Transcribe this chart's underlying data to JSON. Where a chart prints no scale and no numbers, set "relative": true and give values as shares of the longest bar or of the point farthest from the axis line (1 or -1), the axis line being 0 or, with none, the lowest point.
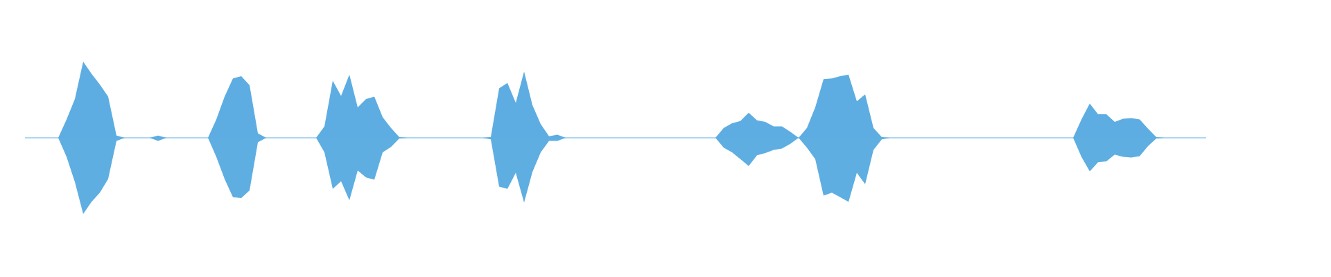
{
  "chart_data": {
    "type": "area",
    "relative": true,
    "categories": [
      null,
      null,
      null,
      null,
      null,
      null,
      null,
      null,
      null,
      null,
      null,
      null,
      null,
      null,
      null,
      null,
      null,
      null,
      null,
      null,
      null,
      null,
      null,
      null,
      null,
      null,
      null,
      null,
      null,
      null,
      null,
      null,
      null,
      null,
      null,
      null,
      null,
      null,
      null,
      null,
      null,
      null,
      null,
      null,
      null,
      null,
      null,
      null,
      null,
      null,
      null,
      null,
      null,
      null,
      null,
      null,
      null,
      null,
      null,
      null,
      null,
      null,
      null,
      null,
      null,
      null,
      null,
      null,
      null,
      null,
      null,
      null,
      null,
      null,
      null,
      null,
      null,
      null,
      null,
      null,
      null,
      null,
      null,
      null,
      null,
      null,
      null,
      null,
      null,
      null,
      null,
      null,
      null,
      null,
      null,
      null,
      null,
      null,
      null,
      null,
      null,
      null,
      null,
      null,
      null,
      null,
      null,
      null,
      null,
      null,
      null,
      null,
      null,
      null,
      null,
      null,
      null,
      null,
      null,
      null,
      null,
      null,
      null,
      null,
      null,
      null,
      null,
      null,
      null,
      null,
      null,
      null,
      null,
      null,
      null,
      null,
      null,
      null,
      null,
      null,
      null,
      null,
      null
    ],
    "series": [
      {
        "color": "#5dade2",
        "values": [
          0,
          0,
          0,
          0,
          0,
          0.24,
          0.51,
          1,
          0.84,
          0.7,
          0.54,
          0.03,
          0,
          0,
          0,
          0,
          0.03,
          0,
          0,
          0,
          0,
          0,
          0,
          0.24,
          0.54,
          0.78,
          0.81,
          0.69,
          0.06,
          0,
          0,
          0,
          0,
          0,
          0,
          0,
          0.15,
          0.75,
          0.55,
          0.83,
          0.4,
          0.51,
          0.54,
          0.27,
          0.13,
          0.01,
          0,
          0,
          0,
          0,
          0,
          0,
          0,
          0,
          0,
          0,
          0.01,
          0.65,
          0.72,
          0.46,
          0.87,
          0.43,
          0.18,
          0.02,
          0.04,
          0,
          0,
          0,
          0,
          0,
          0,
          0,
          0,
          0,
          0,
          0,
          0,
          0,
          0,
          0,
          0,
          0,
          0,
          0,
          0.13,
          0.19,
          0.22,
          0.33,
          0.23,
          0.21,
          0.15,
          0.15,
          0.08,
          0,
          0.13,
          0.4,
          0.77,
          0.78,
          0.81,
          0.83,
          0.48,
          0.57,
          0.13,
          0.01,
          0,
          0,
          0,
          0,
          0,
          0,
          0,
          0,
          0,
          0,
          0,
          0,
          0,
          0,
          0,
          0,
          0,
          0,
          0,
          0,
          0,
          0,
          0,
          0.24,
          0.45,
          0.31,
          0.31,
          0.21,
          0.25,
          0.26,
          0.24,
          0.12,
          0.01,
          0,
          0,
          0,
          0,
          0,
          0
        ]
      },
      {
        "color": "#5eaee2",
        "values": [
          0,
          0,
          0,
          0,
          0,
          -0.25,
          -0.58,
          -1,
          -0.84,
          -0.72,
          -0.54,
          -0.04,
          0,
          0,
          0,
          0,
          -0.04,
          0,
          0,
          0,
          0,
          0,
          0,
          -0.25,
          -0.54,
          -0.78,
          -0.79,
          -0.69,
          -0.06,
          0,
          0,
          0,
          0,
          0,
          0,
          0,
          -0.19,
          -0.67,
          -0.57,
          -0.82,
          -0.43,
          -0.52,
          -0.55,
          -0.19,
          -0.12,
          -0.01,
          0,
          0,
          0,
          0,
          0,
          0,
          0,
          0,
          0,
          0,
          -0.02,
          -0.64,
          -0.67,
          -0.46,
          -0.85,
          -0.45,
          -0.19,
          -0.04,
          -0.04,
          0,
          0,
          0,
          0,
          0,
          0,
          0,
          0,
          0,
          0,
          0,
          0,
          0,
          0,
          0,
          0,
          0,
          0,
          0,
          -0.13,
          -0.19,
          -0.28,
          -0.37,
          -0.23,
          -0.2,
          -0.16,
          -0.14,
          -0.08,
          0,
          -0.13,
          -0.28,
          -0.76,
          -0.72,
          -0.78,
          -0.84,
          -0.46,
          -0.61,
          -0.16,
          -0.02,
          0,
          0,
          0,
          0,
          0,
          0,
          0,
          0,
          0,
          0,
          0,
          0,
          0,
          0,
          0,
          0,
          0,
          0,
          0,
          0,
          0,
          0,
          0,
          -0.25,
          -0.44,
          -0.32,
          -0.31,
          -0.22,
          -0.25,
          -0.26,
          -0.24,
          -0.11,
          -0.01,
          0,
          0,
          0,
          0,
          0,
          0
        ]
      }
    ]
  }
}
